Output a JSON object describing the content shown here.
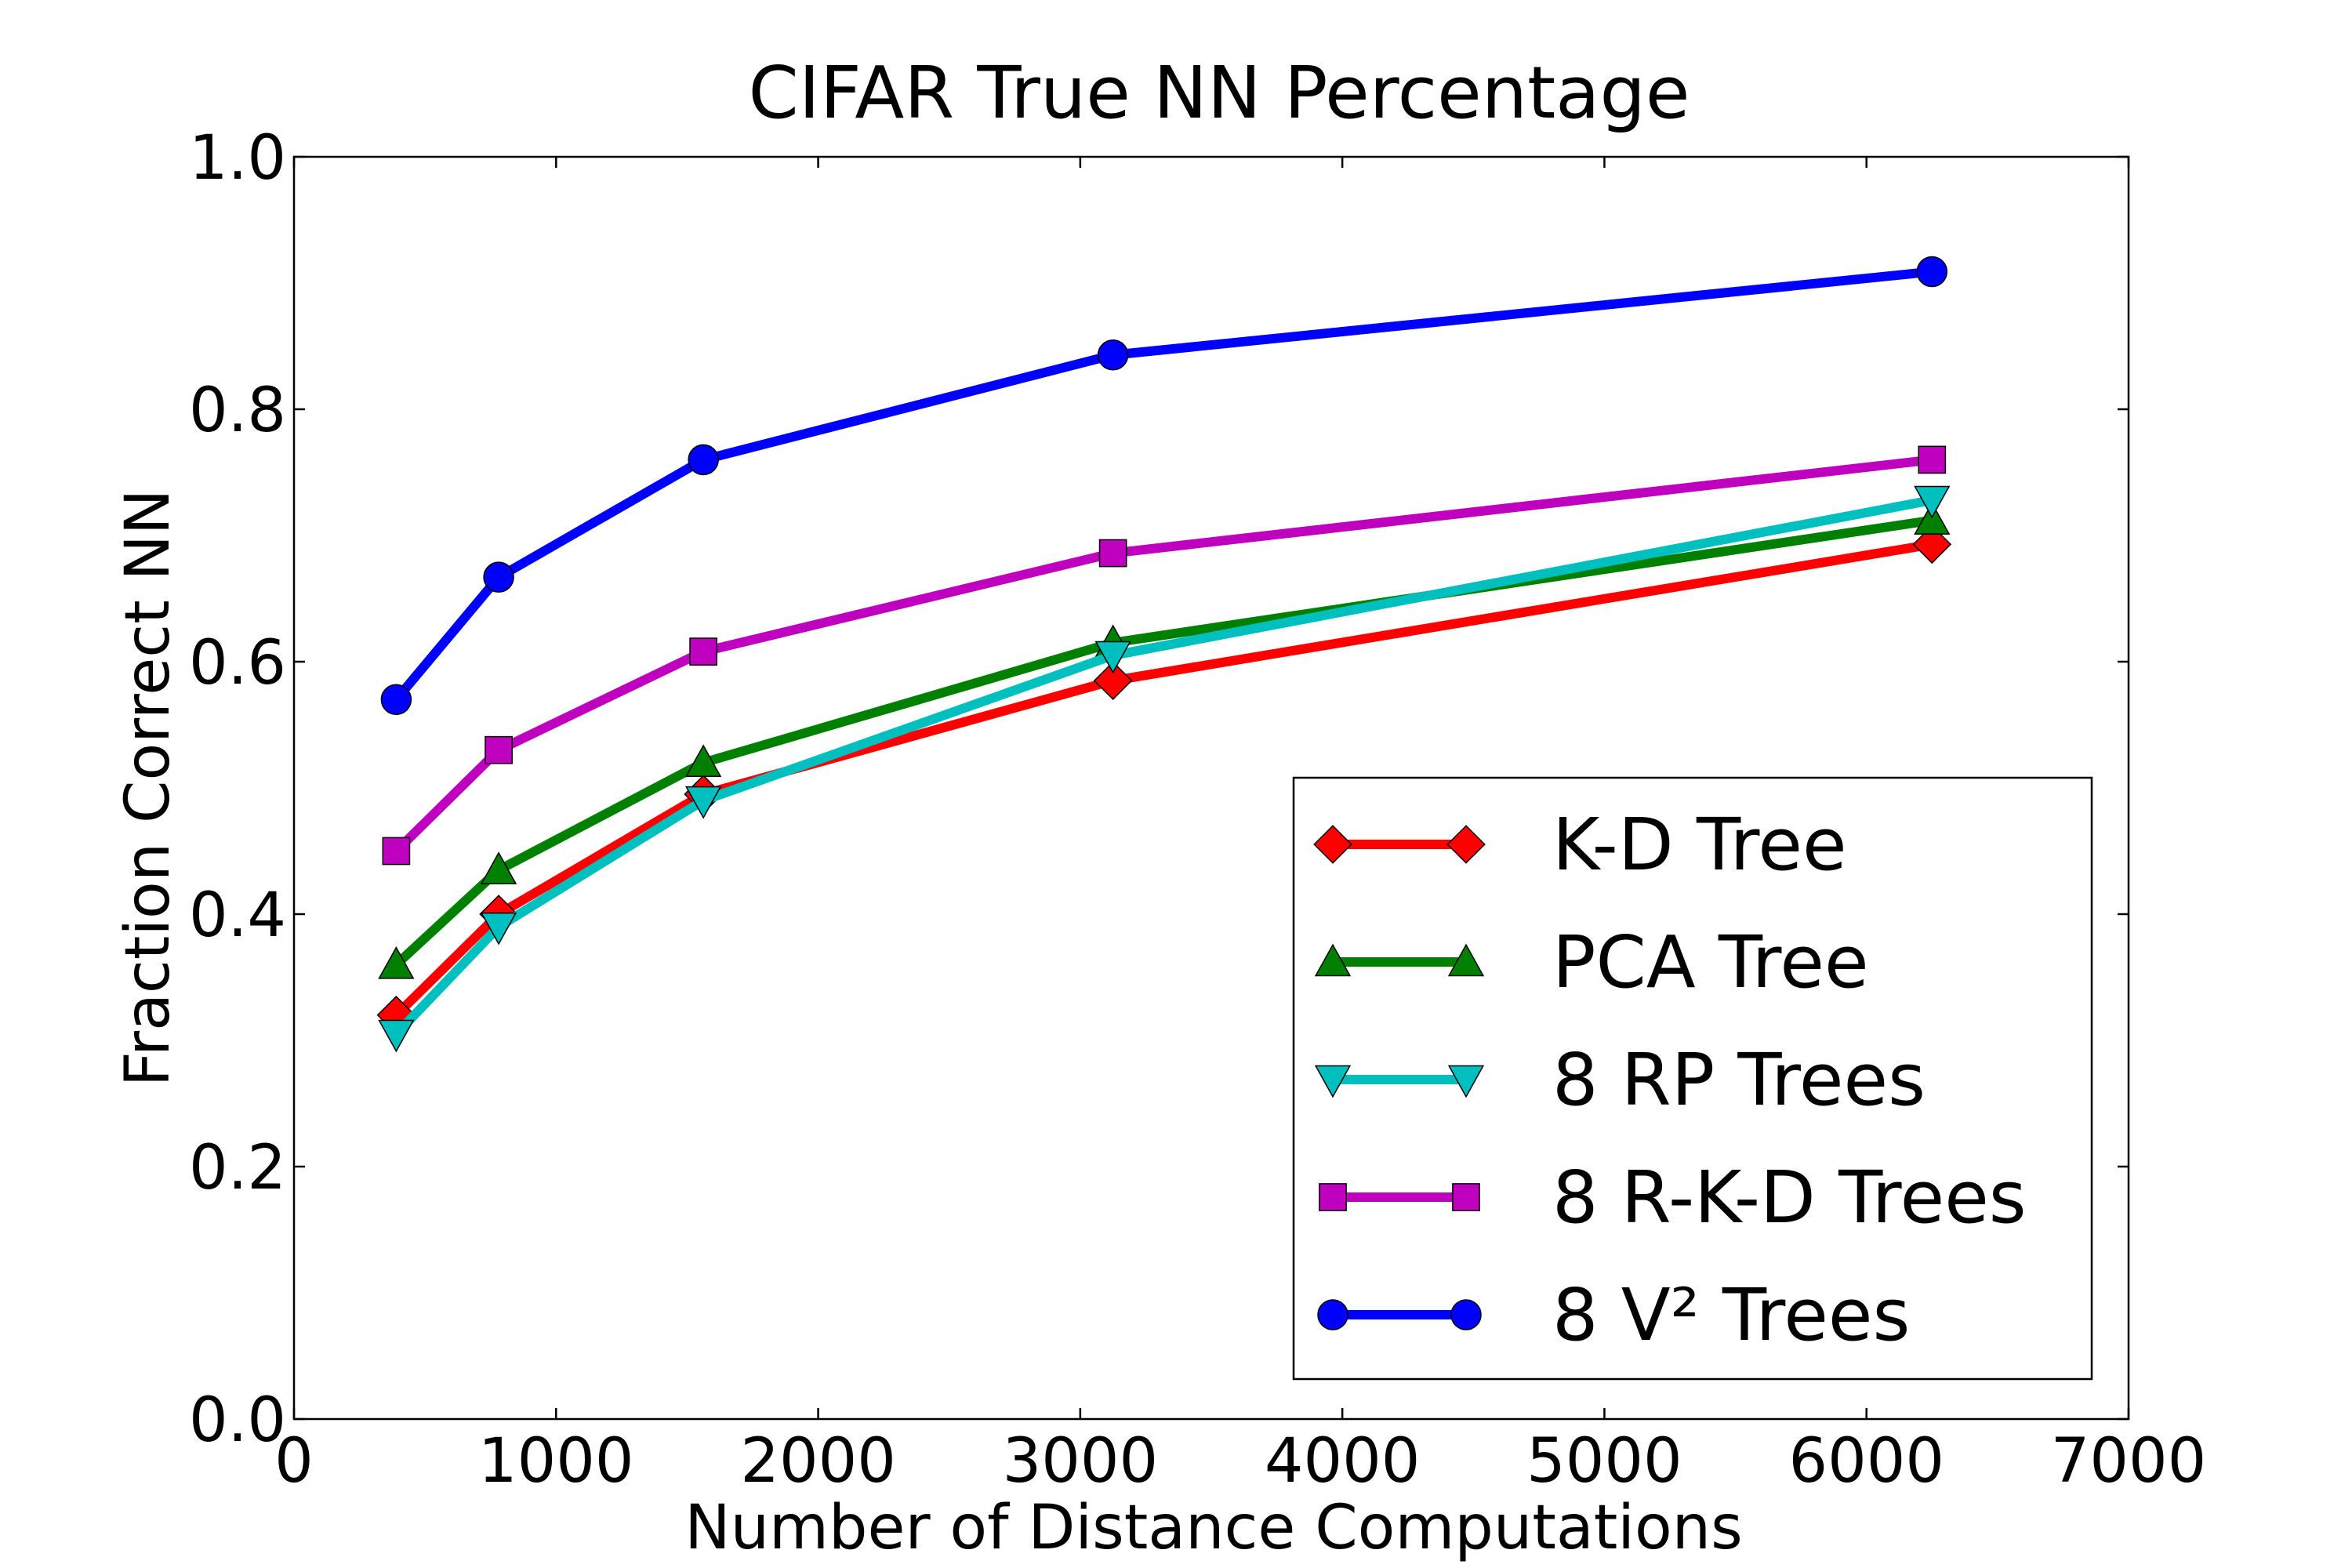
{
  "chart_data": {
    "type": "line",
    "title": "CIFAR True NN Percentage",
    "xlabel": "Number of Distance Computations",
    "ylabel": "Fraction Correct NN",
    "xlim": [
      0,
      7000
    ],
    "ylim": [
      0.0,
      1.0
    ],
    "x_ticks": [
      0,
      1000,
      2000,
      3000,
      4000,
      5000,
      6000,
      7000
    ],
    "y_ticks": [
      0.0,
      0.2,
      0.4,
      0.6,
      0.8,
      1.0
    ],
    "x_tick_labels": [
      "0",
      "1000",
      "2000",
      "3000",
      "4000",
      "5000",
      "6000",
      "7000"
    ],
    "y_tick_labels": [
      "0.0",
      "0.2",
      "0.4",
      "0.6",
      "0.8",
      "1.0"
    ],
    "grid": false,
    "legend_position": "bottom-right",
    "x": [
      390,
      781,
      1562,
      3125,
      6250
    ],
    "series": [
      {
        "name": "K-D Tree",
        "color": "#ff0000",
        "marker": "diamond",
        "values": [
          0.32,
          0.4,
          0.495,
          0.585,
          0.693
        ]
      },
      {
        "name": "PCA Tree",
        "color": "#008000",
        "marker": "triangle-up",
        "values": [
          0.36,
          0.435,
          0.52,
          0.615,
          0.712
        ]
      },
      {
        "name": "8 RP Trees",
        "color": "#00bfbf",
        "marker": "triangle-down",
        "values": [
          0.305,
          0.39,
          0.49,
          0.605,
          0.728
        ]
      },
      {
        "name": "8 R-K-D Trees",
        "color": "#bf00bf",
        "marker": "square",
        "values": [
          0.45,
          0.53,
          0.608,
          0.686,
          0.76
        ]
      },
      {
        "name": "8 V² Trees",
        "color": "#0000ff",
        "marker": "circle",
        "values": [
          0.57,
          0.667,
          0.76,
          0.843,
          0.909
        ]
      }
    ]
  }
}
